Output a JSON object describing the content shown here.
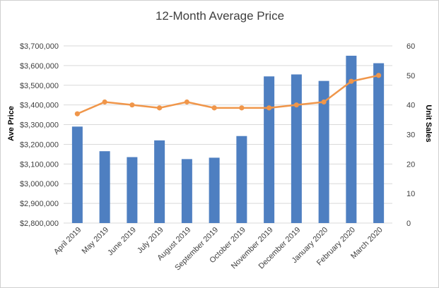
{
  "chart_data": {
    "type": "bar",
    "title": "12-Month Average Price",
    "ylabel": "Ave Price",
    "y2label": "Unit Sales",
    "categories": [
      "April 2019",
      "May 2019",
      "June 2019",
      "July 2019",
      "August 2019",
      "September 2019",
      "October 2019",
      "November 2019",
      "December 2019",
      "January 2020",
      "February 2020",
      "March 2020"
    ],
    "ylim": [
      2800000,
      3700000
    ],
    "y_ticks": [
      "$2,800,000",
      "$2,900,000",
      "$3,000,000",
      "$3,100,000",
      "$3,200,000",
      "$3,300,000",
      "$3,400,000",
      "$3,500,000",
      "$3,600,000",
      "$3,700,000"
    ],
    "y2lim": [
      0,
      60
    ],
    "y2_ticks": [
      "0",
      "10",
      "20",
      "30",
      "40",
      "50",
      "60"
    ],
    "grid": true,
    "series": [
      {
        "type": "bar",
        "axis": "left",
        "color": "#4e7fc1",
        "values": [
          3290000,
          3165000,
          3135000,
          3220000,
          3125000,
          3132000,
          3242000,
          3545000,
          3555000,
          3522000,
          3650000,
          3612000
        ]
      },
      {
        "type": "line",
        "axis": "right",
        "color": "#f0964a",
        "values": [
          37,
          41,
          40,
          39,
          41,
          39,
          39,
          39,
          40,
          41,
          48,
          50
        ]
      }
    ]
  }
}
